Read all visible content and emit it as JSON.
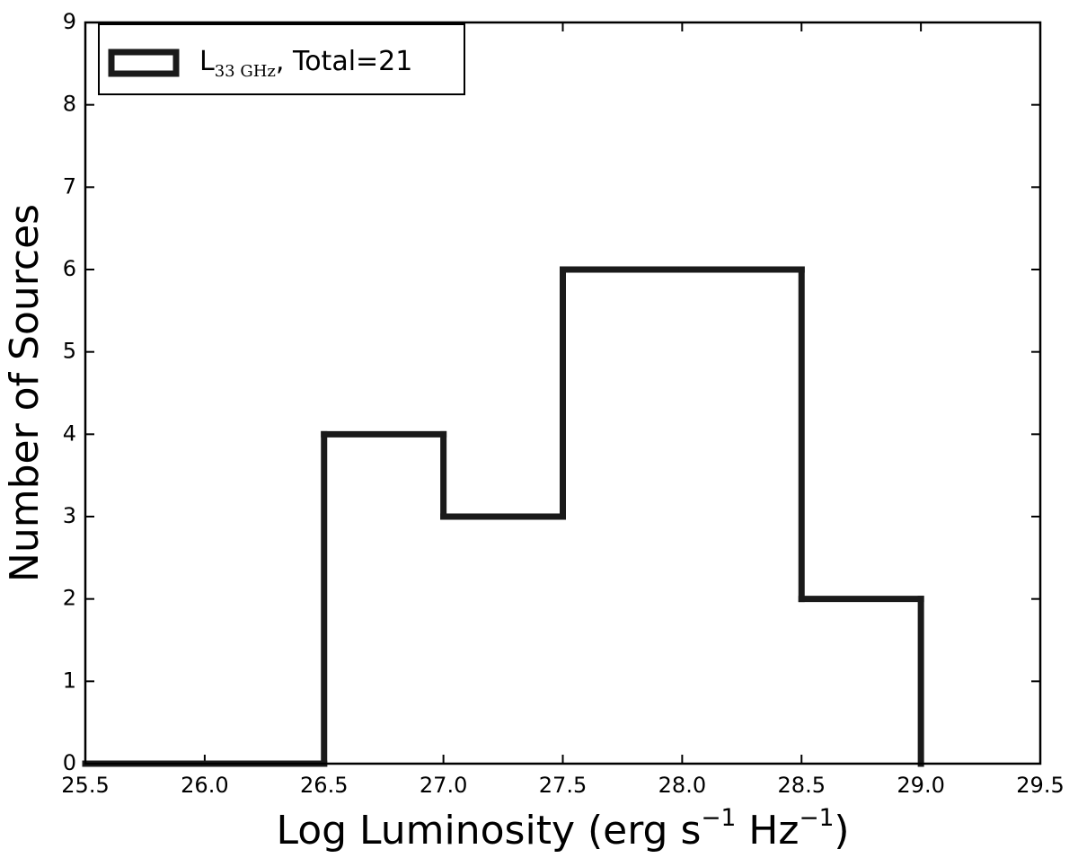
{
  "chart_data": {
    "type": "histogram",
    "xlabel": [
      {
        "text": "Log Luminosity (erg s"
      },
      {
        "text": "−1",
        "sup": true
      },
      {
        "text": "  Hz"
      },
      {
        "text": "−1",
        "sup": true
      },
      {
        "text": ")"
      }
    ],
    "ylabel": "Number of Sources",
    "bins": [
      25.5,
      26.0,
      26.5,
      27.0,
      27.5,
      28.0,
      28.5,
      29.0
    ],
    "series": [
      {
        "name": [
          {
            "text": "L"
          },
          {
            "text": "33 GHz",
            "sub": true
          },
          {
            "text": ", Total=21"
          }
        ],
        "color": "#1a1a1a",
        "values": [
          0,
          0,
          4,
          3,
          6,
          6,
          2
        ]
      }
    ],
    "xlim": [
      25.5,
      29.5
    ],
    "xticks": [
      25.5,
      {
        "value": 26,
        "label": "26.0"
      },
      26.5,
      {
        "value": 27,
        "label": "27.0"
      },
      27.5,
      {
        "value": 28,
        "label": "28.0"
      },
      28.5,
      {
        "value": 29,
        "label": "29.0"
      },
      29.5
    ],
    "ylim": [
      0,
      9
    ],
    "yticks": [
      0,
      1,
      2,
      3,
      4,
      5,
      6,
      7,
      8,
      9
    ],
    "grid": false,
    "legend": "upper left"
  }
}
